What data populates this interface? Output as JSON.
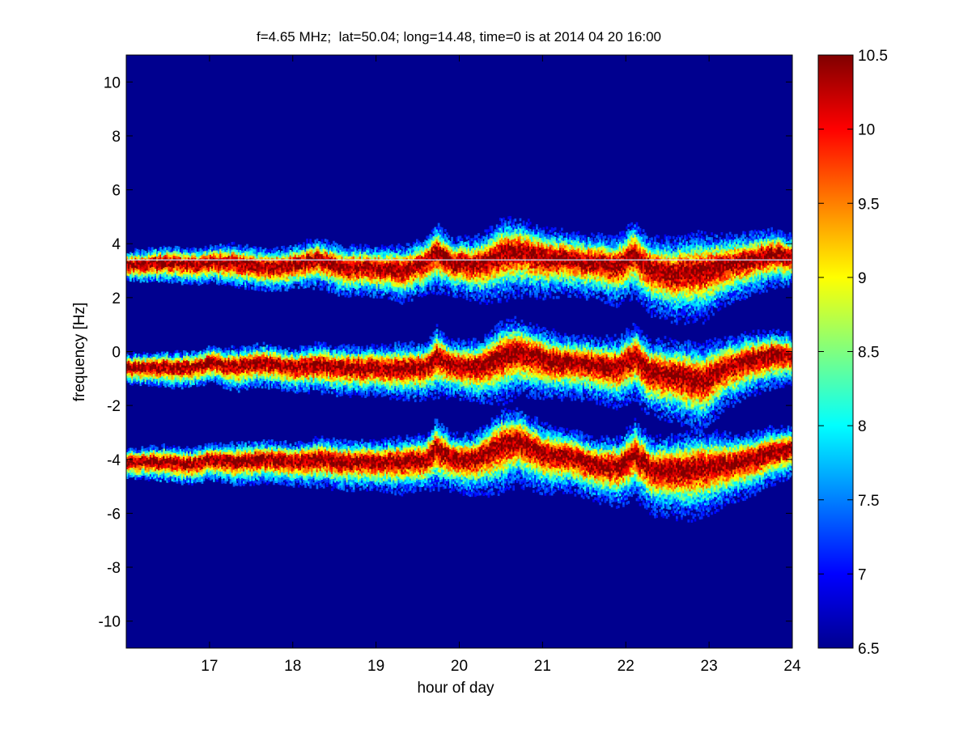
{
  "chart_data": {
    "type": "heatmap",
    "title": "f=4.65 MHz;  lat=50.04; long=14.48, time=0 is at 2014 04 20 16:00",
    "xlabel": "hour of day",
    "ylabel": "frequency [Hz]",
    "xlim": [
      16.0,
      24.0
    ],
    "ylim": [
      -11.0,
      11.0
    ],
    "xticks": [
      17,
      18,
      19,
      20,
      21,
      22,
      23,
      24
    ],
    "yticks": [
      -10,
      -8,
      -6,
      -4,
      -2,
      0,
      2,
      4,
      6,
      8,
      10
    ],
    "colorbar": {
      "range": [
        6.5,
        10.5
      ],
      "ticks": [
        "6.5",
        "7",
        "7.5",
        "8",
        "8.5",
        "9",
        "9.5",
        "10",
        "10.5"
      ],
      "colormap": "jet"
    },
    "background_level": 6.5,
    "reference_line_hz": 3.4,
    "series": [
      {
        "hours": [
          16.0,
          16.5,
          16.8,
          17.0,
          17.3,
          17.6,
          18.0,
          18.3,
          18.6,
          19.0,
          19.3,
          19.6,
          19.72,
          19.9,
          20.2,
          20.5,
          20.7,
          21.0,
          21.3,
          21.6,
          21.9,
          22.1,
          22.3,
          22.6,
          22.9,
          23.2,
          23.5,
          23.8,
          24.0
        ],
        "center_hz": [
          3.2,
          3.3,
          3.2,
          3.3,
          3.3,
          3.1,
          3.2,
          3.4,
          3.1,
          3.1,
          3.0,
          3.3,
          3.7,
          3.3,
          3.2,
          3.6,
          3.7,
          3.5,
          3.4,
          3.3,
          3.2,
          3.6,
          3.0,
          2.9,
          3.0,
          3.2,
          3.4,
          3.6,
          3.5
        ],
        "spread_hz": [
          0.2,
          0.3,
          0.3,
          0.3,
          0.4,
          0.4,
          0.4,
          0.5,
          0.5,
          0.5,
          0.6,
          0.6,
          0.8,
          0.6,
          0.7,
          1.0,
          0.9,
          0.8,
          0.7,
          0.7,
          0.8,
          0.9,
          0.9,
          1.0,
          1.1,
          0.8,
          0.7,
          0.6,
          0.5
        ]
      },
      {
        "hours": [
          16.0,
          16.5,
          16.8,
          17.0,
          17.3,
          17.6,
          18.0,
          18.3,
          18.6,
          19.0,
          19.3,
          19.6,
          19.72,
          19.9,
          20.2,
          20.5,
          20.7,
          21.0,
          21.3,
          21.6,
          21.9,
          22.1,
          22.3,
          22.6,
          22.9,
          23.2,
          23.5,
          23.8,
          24.0
        ],
        "center_hz": [
          -0.6,
          -0.6,
          -0.6,
          -0.4,
          -0.6,
          -0.4,
          -0.6,
          -0.5,
          -0.6,
          -0.6,
          -0.6,
          -0.6,
          -0.2,
          -0.5,
          -0.6,
          -0.2,
          0.0,
          -0.3,
          -0.4,
          -0.5,
          -0.6,
          -0.2,
          -0.8,
          -0.9,
          -1.1,
          -0.6,
          -0.3,
          -0.1,
          -0.2
        ],
        "spread_hz": [
          0.2,
          0.3,
          0.3,
          0.3,
          0.4,
          0.4,
          0.4,
          0.5,
          0.5,
          0.5,
          0.6,
          0.6,
          0.8,
          0.6,
          0.7,
          1.0,
          0.9,
          0.8,
          0.7,
          0.7,
          0.8,
          0.9,
          0.9,
          1.0,
          1.1,
          0.8,
          0.7,
          0.6,
          0.5
        ]
      },
      {
        "hours": [
          16.0,
          16.5,
          16.8,
          17.0,
          17.3,
          17.6,
          18.0,
          18.3,
          18.6,
          19.0,
          19.3,
          19.6,
          19.72,
          19.9,
          20.2,
          20.5,
          20.7,
          21.0,
          21.3,
          21.6,
          21.9,
          22.1,
          22.3,
          22.6,
          22.9,
          23.2,
          23.5,
          23.8,
          24.0
        ],
        "center_hz": [
          -4.1,
          -4.1,
          -4.2,
          -4.0,
          -4.1,
          -4.0,
          -4.1,
          -4.0,
          -4.1,
          -4.1,
          -4.1,
          -4.0,
          -3.6,
          -4.0,
          -4.0,
          -3.5,
          -3.3,
          -3.8,
          -3.9,
          -4.2,
          -4.3,
          -3.8,
          -4.4,
          -4.4,
          -4.3,
          -4.2,
          -4.0,
          -3.7,
          -3.6
        ],
        "spread_hz": [
          0.2,
          0.3,
          0.3,
          0.3,
          0.4,
          0.4,
          0.4,
          0.5,
          0.5,
          0.5,
          0.6,
          0.6,
          0.8,
          0.6,
          0.7,
          1.0,
          0.9,
          0.8,
          0.7,
          0.7,
          0.8,
          0.9,
          0.9,
          1.0,
          1.1,
          0.8,
          0.7,
          0.6,
          0.5
        ]
      }
    ]
  }
}
